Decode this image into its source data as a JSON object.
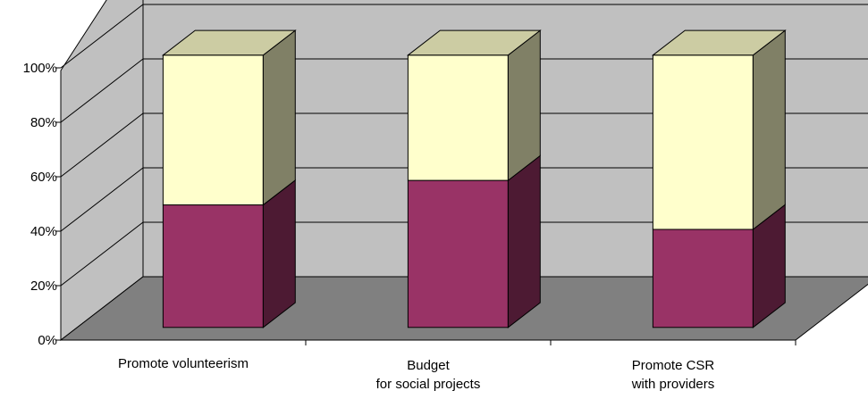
{
  "chart_data": {
    "type": "bar",
    "stacked": true,
    "percent_stacked": true,
    "three_d": true,
    "categories": [
      [
        "Promote volunteerism"
      ],
      [
        "Budget",
        "for social projects"
      ],
      [
        "Promote CSR",
        "with providers"
      ]
    ],
    "series": [
      {
        "values": [
          45,
          54,
          36
        ],
        "color": "#993366"
      },
      {
        "values": [
          55,
          46,
          64
        ],
        "color": "#FFFFCC"
      }
    ],
    "yticks": [
      "0%",
      "20%",
      "40%",
      "60%",
      "80%",
      "100%"
    ],
    "ylim": [
      0,
      100
    ],
    "grid": true,
    "legend": "none",
    "wall_color": "#C0C0C0",
    "floor_color": "#808080"
  }
}
